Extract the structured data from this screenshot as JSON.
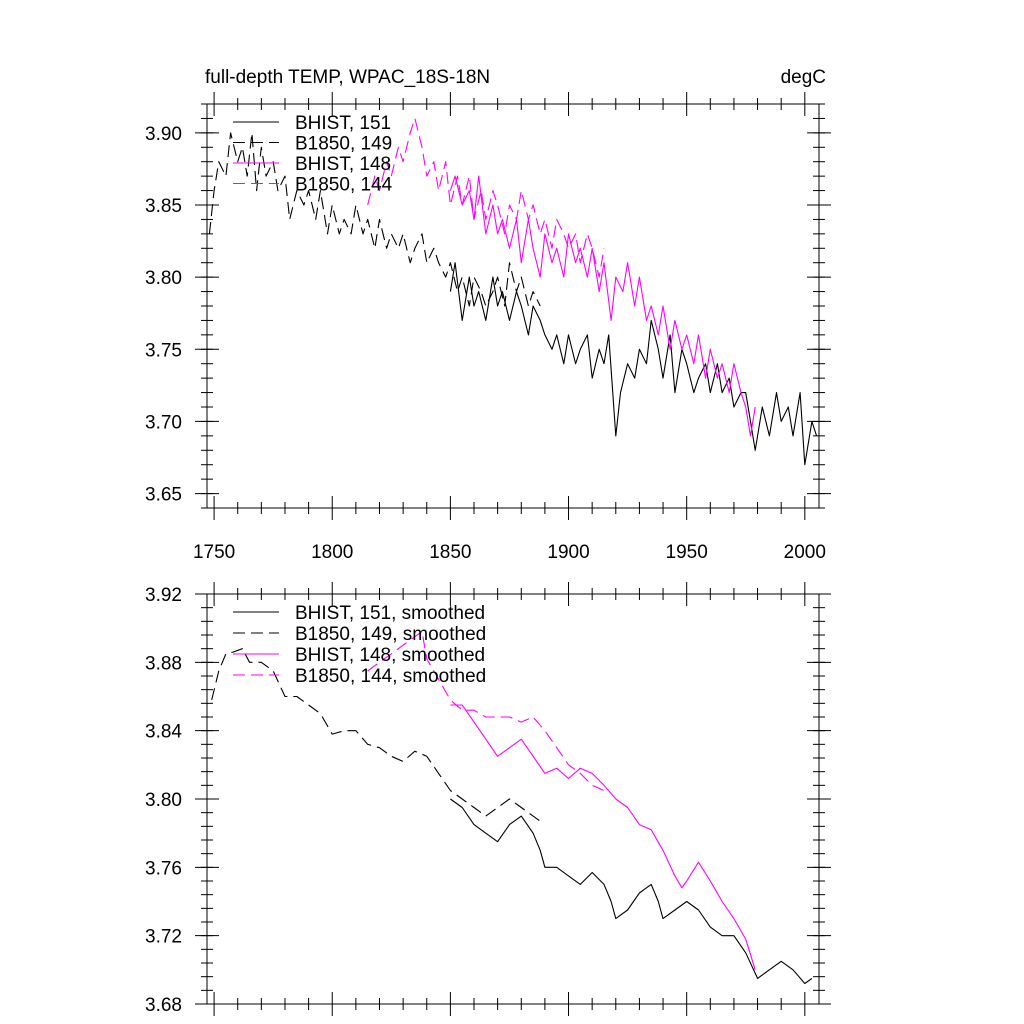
{
  "chart_data": [
    {
      "type": "line",
      "title": "full-depth TEMP, WPAC_18S-18N",
      "units": "degC",
      "xlim": [
        1747,
        2006
      ],
      "ylim": [
        3.64,
        3.92
      ],
      "x_ticks": [
        1750,
        1800,
        1850,
        1900,
        1950,
        2000
      ],
      "y_ticks": [
        3.65,
        3.7,
        3.75,
        3.8,
        3.85,
        3.9
      ],
      "y_tick_labels": [
        "3.65",
        "3.70",
        "3.75",
        "3.80",
        "3.85",
        "3.90"
      ],
      "legend_position": "top-left",
      "series": [
        {
          "name": "BHIST, 151",
          "color": "#000000",
          "dash": "solid",
          "x": [
            1850,
            1852,
            1855,
            1858,
            1860,
            1862,
            1865,
            1868,
            1870,
            1872,
            1875,
            1878,
            1880,
            1883,
            1885,
            1888,
            1890,
            1893,
            1895,
            1898,
            1900,
            1903,
            1905,
            1908,
            1910,
            1913,
            1915,
            1917,
            1920,
            1922,
            1925,
            1928,
            1930,
            1933,
            1935,
            1938,
            1940,
            1943,
            1945,
            1948,
            1950,
            1953,
            1955,
            1958,
            1960,
            1963,
            1965,
            1968,
            1970,
            1973,
            1975,
            1977,
            1979,
            1982,
            1985,
            1988,
            1990,
            1993,
            1995,
            1998,
            2000,
            2003,
            2005
          ],
          "y": [
            3.79,
            3.81,
            3.77,
            3.8,
            3.78,
            3.79,
            3.77,
            3.8,
            3.78,
            3.79,
            3.77,
            3.79,
            3.78,
            3.76,
            3.78,
            3.77,
            3.76,
            3.75,
            3.76,
            3.74,
            3.76,
            3.74,
            3.75,
            3.76,
            3.73,
            3.75,
            3.74,
            3.76,
            3.69,
            3.72,
            3.74,
            3.73,
            3.75,
            3.74,
            3.77,
            3.75,
            3.73,
            3.76,
            3.72,
            3.75,
            3.74,
            3.72,
            3.73,
            3.74,
            3.72,
            3.74,
            3.72,
            3.73,
            3.71,
            3.72,
            3.72,
            3.7,
            3.68,
            3.71,
            3.69,
            3.72,
            3.7,
            3.71,
            3.69,
            3.72,
            3.67,
            3.7,
            3.69
          ]
        },
        {
          "name": "B1850, 149",
          "color": "#000000",
          "dash": "dashed",
          "x": [
            1748,
            1750,
            1752,
            1755,
            1757,
            1760,
            1762,
            1764,
            1766,
            1768,
            1770,
            1772,
            1775,
            1777,
            1780,
            1782,
            1785,
            1788,
            1790,
            1793,
            1795,
            1798,
            1800,
            1803,
            1805,
            1808,
            1810,
            1813,
            1815,
            1818,
            1820,
            1823,
            1825,
            1828,
            1830,
            1833,
            1835,
            1838,
            1840,
            1843,
            1845,
            1848,
            1850,
            1853,
            1855,
            1858,
            1860,
            1863,
            1865,
            1868,
            1870,
            1873,
            1875,
            1878,
            1880,
            1883,
            1885,
            1888
          ],
          "y": [
            3.83,
            3.86,
            3.88,
            3.87,
            3.9,
            3.88,
            3.89,
            3.87,
            3.9,
            3.86,
            3.89,
            3.87,
            3.88,
            3.86,
            3.87,
            3.84,
            3.86,
            3.85,
            3.86,
            3.84,
            3.86,
            3.83,
            3.85,
            3.83,
            3.84,
            3.83,
            3.85,
            3.83,
            3.84,
            3.82,
            3.84,
            3.82,
            3.83,
            3.82,
            3.83,
            3.81,
            3.82,
            3.83,
            3.81,
            3.82,
            3.81,
            3.8,
            3.81,
            3.79,
            3.8,
            3.78,
            3.8,
            3.79,
            3.78,
            3.79,
            3.8,
            3.78,
            3.81,
            3.79,
            3.8,
            3.78,
            3.79,
            3.78
          ]
        },
        {
          "name": "BHIST, 148",
          "color": "#ff00ff",
          "dash": "solid",
          "x": [
            1850,
            1852,
            1855,
            1858,
            1860,
            1862,
            1865,
            1868,
            1870,
            1872,
            1875,
            1878,
            1880,
            1883,
            1885,
            1888,
            1890,
            1893,
            1895,
            1898,
            1900,
            1903,
            1905,
            1908,
            1910,
            1913,
            1915,
            1918,
            1920,
            1923,
            1925,
            1928,
            1930,
            1933,
            1935,
            1938,
            1940,
            1943,
            1945,
            1948,
            1950,
            1953,
            1955,
            1958,
            1960,
            1963,
            1965,
            1968,
            1970,
            1973,
            1975,
            1977,
            1979
          ],
          "y": [
            3.86,
            3.87,
            3.85,
            3.86,
            3.84,
            3.87,
            3.83,
            3.85,
            3.83,
            3.84,
            3.82,
            3.84,
            3.81,
            3.84,
            3.82,
            3.8,
            3.83,
            3.81,
            3.82,
            3.8,
            3.83,
            3.81,
            3.82,
            3.8,
            3.82,
            3.79,
            3.81,
            3.77,
            3.8,
            3.79,
            3.81,
            3.78,
            3.8,
            3.77,
            3.78,
            3.76,
            3.78,
            3.75,
            3.77,
            3.75,
            3.76,
            3.74,
            3.76,
            3.73,
            3.75,
            3.73,
            3.74,
            3.72,
            3.74,
            3.72,
            3.71,
            3.69,
            3.71
          ]
        },
        {
          "name": "B1850, 144",
          "color": "#ff00ff",
          "dash": "dashed",
          "x": [
            1815,
            1818,
            1820,
            1823,
            1825,
            1828,
            1830,
            1833,
            1835,
            1838,
            1840,
            1843,
            1845,
            1848,
            1850,
            1853,
            1855,
            1858,
            1860,
            1863,
            1865,
            1868,
            1870,
            1873,
            1875,
            1878,
            1880,
            1883,
            1885,
            1888,
            1890,
            1893,
            1895,
            1898,
            1900,
            1903,
            1905,
            1908,
            1910,
            1913,
            1915
          ],
          "y": [
            3.85,
            3.87,
            3.86,
            3.88,
            3.87,
            3.89,
            3.88,
            3.9,
            3.91,
            3.89,
            3.87,
            3.88,
            3.86,
            3.88,
            3.85,
            3.87,
            3.85,
            3.87,
            3.84,
            3.86,
            3.84,
            3.86,
            3.85,
            3.83,
            3.85,
            3.84,
            3.86,
            3.84,
            3.85,
            3.83,
            3.84,
            3.82,
            3.84,
            3.83,
            3.82,
            3.83,
            3.81,
            3.83,
            3.82,
            3.8,
            3.82
          ]
        }
      ]
    },
    {
      "type": "line",
      "xlim": [
        1747,
        2006
      ],
      "ylim": [
        3.68,
        3.92
      ],
      "y_ticks": [
        3.68,
        3.72,
        3.76,
        3.8,
        3.84,
        3.88,
        3.92
      ],
      "y_tick_labels": [
        "3.68",
        "3.72",
        "3.76",
        "3.80",
        "3.84",
        "3.88",
        "3.92"
      ],
      "legend_position": "top-left",
      "series": [
        {
          "name": "BHIST, 151, smoothed",
          "color": "#000000",
          "dash": "solid",
          "x": [
            1850,
            1855,
            1860,
            1865,
            1870,
            1875,
            1880,
            1885,
            1888,
            1890,
            1895,
            1900,
            1905,
            1910,
            1915,
            1918,
            1920,
            1925,
            1930,
            1935,
            1938,
            1940,
            1945,
            1950,
            1955,
            1960,
            1965,
            1970,
            1975,
            1980,
            1985,
            1990,
            1995,
            2000,
            2003
          ],
          "y": [
            3.8,
            3.795,
            3.785,
            3.78,
            3.775,
            3.785,
            3.79,
            3.78,
            3.77,
            3.76,
            3.76,
            3.755,
            3.75,
            3.757,
            3.75,
            3.74,
            3.73,
            3.735,
            3.745,
            3.75,
            3.74,
            3.73,
            3.735,
            3.74,
            3.735,
            3.725,
            3.72,
            3.72,
            3.71,
            3.695,
            3.7,
            3.705,
            3.7,
            3.692,
            3.695
          ]
        },
        {
          "name": "B1850, 149, smoothed",
          "color": "#000000",
          "dash": "dashed",
          "x": [
            1749,
            1752,
            1755,
            1758,
            1762,
            1765,
            1770,
            1775,
            1780,
            1785,
            1790,
            1795,
            1800,
            1805,
            1810,
            1815,
            1820,
            1825,
            1830,
            1835,
            1840,
            1845,
            1850,
            1855,
            1860,
            1865,
            1870,
            1875,
            1880,
            1885,
            1888
          ],
          "y": [
            3.858,
            3.875,
            3.885,
            3.886,
            3.888,
            3.88,
            3.88,
            3.875,
            3.86,
            3.86,
            3.855,
            3.85,
            3.838,
            3.84,
            3.84,
            3.832,
            3.83,
            3.825,
            3.822,
            3.828,
            3.825,
            3.815,
            3.805,
            3.8,
            3.795,
            3.79,
            3.795,
            3.8,
            3.795,
            3.79,
            3.787
          ]
        },
        {
          "name": "BHIST, 148, smoothed",
          "color": "#ff00ff",
          "dash": "solid",
          "x": [
            1850,
            1855,
            1860,
            1865,
            1870,
            1875,
            1880,
            1885,
            1890,
            1895,
            1900,
            1905,
            1910,
            1915,
            1920,
            1925,
            1930,
            1935,
            1940,
            1945,
            1948,
            1950,
            1955,
            1960,
            1965,
            1970,
            1975,
            1979
          ],
          "y": [
            3.855,
            3.855,
            3.845,
            3.835,
            3.825,
            3.83,
            3.835,
            3.825,
            3.815,
            3.818,
            3.812,
            3.818,
            3.815,
            3.808,
            3.8,
            3.795,
            3.785,
            3.782,
            3.77,
            3.755,
            3.748,
            3.752,
            3.763,
            3.752,
            3.74,
            3.73,
            3.718,
            3.7
          ]
        },
        {
          "name": "B1850, 144, smoothed",
          "color": "#ff00ff",
          "dash": "dashed",
          "x": [
            1815,
            1820,
            1825,
            1830,
            1835,
            1838,
            1840,
            1845,
            1850,
            1855,
            1860,
            1865,
            1870,
            1875,
            1880,
            1885,
            1890,
            1895,
            1900,
            1905,
            1910,
            1915
          ],
          "y": [
            3.875,
            3.88,
            3.885,
            3.89,
            3.895,
            3.898,
            3.882,
            3.87,
            3.858,
            3.852,
            3.852,
            3.848,
            3.848,
            3.848,
            3.845,
            3.848,
            3.84,
            3.83,
            3.82,
            3.815,
            3.808,
            3.805
          ]
        }
      ]
    }
  ]
}
